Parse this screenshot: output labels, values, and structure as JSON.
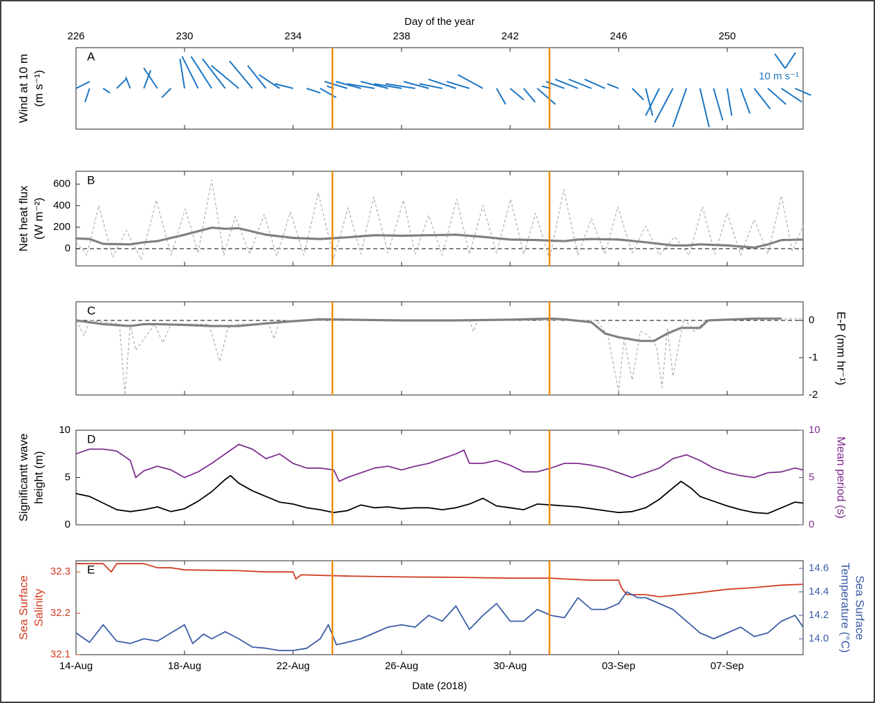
{
  "chart_data": [
    {
      "type": "wind",
      "label": "A",
      "ylabel": [
        "Wind at 10 m",
        "(m s⁻¹)"
      ],
      "xlabel": "Day of the year",
      "xlim": [
        226,
        252.8
      ],
      "xticks": [
        226,
        230,
        234,
        238,
        242,
        246,
        250
      ],
      "vlines": [
        235.45,
        243.45
      ],
      "vline_color": "#f28c00",
      "color": "#1a75c2",
      "key_label": "10 m s⁻¹",
      "x": [
        226,
        226.5,
        227,
        227.5,
        228,
        228.5,
        229,
        229.5,
        230,
        230.5,
        231,
        231.5,
        232,
        232.5,
        233,
        233.5,
        234,
        234.5,
        235,
        235.5,
        236,
        236.5,
        237,
        237.5,
        238,
        238.5,
        239,
        239.5,
        240,
        240.5,
        241,
        241.5,
        242,
        242.5,
        243,
        243.5,
        244,
        244.5,
        245,
        245.5,
        246,
        246.5,
        247,
        247.5,
        248,
        248.5,
        249,
        249.5,
        250,
        250.5,
        251,
        251.5,
        252,
        252.5
      ],
      "u": [
        6,
        -2,
        3,
        4,
        -2,
        3,
        -6,
        -4,
        -2,
        -7,
        -9,
        -10,
        -12,
        -10,
        -8,
        -9,
        -8,
        6,
        7,
        -3,
        -10,
        -11,
        -12,
        -12,
        -12,
        -13,
        -11,
        -10,
        -12,
        -10,
        -11,
        4,
        6,
        5,
        8,
        -4,
        -8,
        -10,
        -10,
        -9,
        -5,
        5,
        3,
        -6,
        -8,
        -6,
        4,
        4,
        2,
        4,
        7,
        8,
        9,
        7
      ],
      "v": [
        3,
        -6,
        -2,
        4,
        5,
        8,
        9,
        -4,
        13,
        14,
        14,
        13,
        10,
        12,
        10,
        6,
        2,
        -2,
        -4,
        1,
        3,
        3,
        2,
        3,
        2,
        2,
        3,
        2,
        4,
        3,
        6,
        -7,
        -5,
        -6,
        -7,
        1,
        3,
        4,
        4,
        4,
        2,
        -5,
        -12,
        -12,
        -15,
        -17,
        -17,
        -14,
        -12,
        -11,
        -9,
        -7,
        -6,
        -3
      ]
    },
    {
      "type": "line",
      "label": "B",
      "ylabel": [
        "Net heat flux",
        "(W m⁻²)"
      ],
      "xlim": [
        226,
        252.8
      ],
      "ylim": [
        -160,
        720
      ],
      "yticks": [
        0,
        200,
        400,
        600
      ],
      "hline": 0,
      "vlines": [
        235.45,
        243.45
      ],
      "vline_color": "#f28c00",
      "series": [
        {
          "color": "#b4b4b4",
          "dash": true,
          "width": 1.3,
          "x": [
            226,
            226.4,
            226.84,
            227.35,
            227.86,
            228.4,
            228.96,
            229.5,
            230.03,
            230.5,
            231.0,
            231.45,
            231.87,
            232.4,
            232.94,
            233.4,
            233.9,
            234.4,
            234.93,
            235.5,
            236.03,
            236.5,
            236.97,
            237.5,
            238.07,
            238.5,
            239.0,
            239.5,
            240.03,
            240.5,
            241.0,
            241.5,
            242.02,
            242.5,
            242.94,
            243.45,
            243.98,
            244.5,
            245.0,
            245.5,
            245.97,
            246.5,
            247.0,
            247.5,
            248.07,
            248.6,
            249.09,
            249.55,
            250.0,
            250.5,
            251.0,
            251.5,
            252.0,
            252.4,
            252.8
          ],
          "values": [
            60,
            -60,
            400,
            -80,
            170,
            -100,
            450,
            -60,
            370,
            -40,
            640,
            -60,
            300,
            -50,
            320,
            -70,
            340,
            -60,
            520,
            -90,
            380,
            -50,
            480,
            -40,
            450,
            -50,
            310,
            -60,
            460,
            -50,
            400,
            -40,
            460,
            -50,
            330,
            -100,
            550,
            -60,
            280,
            -50,
            390,
            -40,
            210,
            -60,
            110,
            -60,
            390,
            -50,
            330,
            -60,
            270,
            -50,
            490,
            -20,
            210
          ]
        },
        {
          "color": "#808080",
          "dash": false,
          "width": 3.2,
          "x": [
            226,
            226.5,
            227,
            228,
            228.5,
            229,
            230,
            231,
            231.5,
            232,
            233,
            234,
            235,
            236,
            237,
            238,
            239,
            240,
            241,
            242,
            243,
            244,
            244.5,
            245,
            246,
            247,
            248,
            248.5,
            249,
            250,
            251,
            251.5,
            252,
            252.8
          ],
          "values": [
            95,
            90,
            45,
            40,
            60,
            70,
            130,
            195,
            185,
            190,
            130,
            100,
            90,
            105,
            125,
            120,
            125,
            130,
            110,
            85,
            80,
            70,
            85,
            90,
            85,
            60,
            30,
            30,
            40,
            30,
            10,
            40,
            80,
            85
          ]
        }
      ]
    },
    {
      "type": "line",
      "label": "C",
      "ylabel": [
        "E-P (mm hr⁻¹)"
      ],
      "ylabel_side": "right",
      "ytick_side": "right",
      "xlim": [
        226,
        252.8
      ],
      "ylim": [
        -2,
        0.5
      ],
      "yticks": [
        0,
        -1,
        -2
      ],
      "hline": 0,
      "vlines": [
        235.45,
        243.45
      ],
      "vline_color": "#f28c00",
      "series": [
        {
          "color": "#b4b4b4",
          "dash": true,
          "width": 1.3,
          "x": [
            226,
            226.3,
            226.5,
            227.6,
            227.8,
            228.0,
            228.2,
            228.9,
            229.2,
            229.5,
            230.9,
            231.3,
            231.6,
            232.0,
            233.1,
            233.3,
            233.5,
            235,
            240.5,
            240.65,
            240.8,
            245.2,
            245.6,
            246.0,
            246.2,
            246.5,
            246.8,
            247.1,
            247.4,
            247.6,
            247.8,
            248.0,
            248.4,
            248.8,
            249.2,
            252.8
          ],
          "values": [
            0,
            -0.4,
            0,
            -0.1,
            -2.0,
            -0.1,
            -0.8,
            -0.1,
            -0.6,
            -0.1,
            -0.1,
            -1.1,
            -0.2,
            -0.1,
            -0.1,
            -0.5,
            0,
            0,
            0,
            -0.3,
            0,
            0,
            -0.4,
            -1.9,
            -0.5,
            -1.6,
            -0.3,
            -0.4,
            -0.7,
            -1.8,
            -0.2,
            -1.5,
            0.05,
            -0.3,
            0,
            0.05
          ]
        },
        {
          "color": "#808080",
          "dash": false,
          "width": 3.2,
          "x": [
            226,
            226.5,
            227,
            228,
            228.5,
            229,
            230,
            231,
            232,
            233,
            234,
            235,
            236,
            238,
            240,
            242,
            243.5,
            244,
            245,
            245.5,
            246,
            246.8,
            247.3,
            247.8,
            248.3,
            249,
            249.3,
            250,
            251,
            252
          ],
          "values": [
            0,
            -0.05,
            -0.1,
            -0.15,
            -0.1,
            -0.1,
            -0.12,
            -0.15,
            -0.15,
            -0.08,
            -0.02,
            0.03,
            0.02,
            0,
            0,
            0.02,
            0.05,
            0.03,
            -0.05,
            -0.35,
            -0.45,
            -0.55,
            -0.55,
            -0.35,
            -0.2,
            -0.2,
            0,
            0.02,
            0.05,
            0.05
          ]
        }
      ]
    },
    {
      "type": "line",
      "label": "D",
      "ylabel": [
        "Significantt wave",
        "height (m)"
      ],
      "y2label": [
        "Mean period (s)"
      ],
      "y2color": "#7e2f8e",
      "xlim": [
        226,
        252.8
      ],
      "ylim": [
        0,
        10
      ],
      "yticks": [
        0,
        5,
        10
      ],
      "y2lim": [
        0,
        10
      ],
      "y2ticks": [
        0,
        5,
        10
      ],
      "vlines": [
        235.45,
        243.45
      ],
      "vline_color": "#f28c00",
      "series": [
        {
          "color": "#000000",
          "dash": false,
          "width": 1.8,
          "x": [
            226,
            226.5,
            227,
            227.5,
            228,
            228.5,
            229,
            229.5,
            230,
            230.5,
            231,
            231.5,
            231.7,
            232,
            232.5,
            233,
            233.5,
            234,
            234.5,
            235,
            235.5,
            236,
            236.5,
            237,
            237.5,
            238,
            238.5,
            239,
            239.5,
            240,
            240.5,
            241,
            241.5,
            242,
            242.5,
            243,
            243.5,
            244,
            244.5,
            245,
            245.5,
            246,
            246.5,
            247,
            247.5,
            248,
            248.3,
            248.7,
            249,
            249.5,
            250,
            250.5,
            251,
            251.5,
            252,
            252.5,
            252.8
          ],
          "values": [
            3.3,
            3.0,
            2.3,
            1.6,
            1.4,
            1.6,
            1.9,
            1.4,
            1.7,
            2.5,
            3.5,
            4.8,
            5.2,
            4.4,
            3.6,
            3.0,
            2.4,
            2.2,
            1.8,
            1.6,
            1.3,
            1.5,
            2.1,
            1.8,
            1.9,
            1.7,
            1.8,
            1.8,
            1.6,
            1.8,
            2.2,
            2.8,
            2.0,
            1.8,
            1.6,
            2.2,
            2.1,
            2.0,
            1.9,
            1.7,
            1.5,
            1.3,
            1.4,
            1.8,
            2.7,
            3.9,
            4.6,
            3.8,
            3.0,
            2.5,
            2.0,
            1.6,
            1.3,
            1.2,
            1.8,
            2.4,
            2.3
          ]
        },
        {
          "color": "#7e2f8e",
          "dash": false,
          "width": 1.8,
          "axis": "y2",
          "x": [
            226,
            226.5,
            227,
            227.5,
            228,
            228.2,
            228.5,
            229,
            229.5,
            230,
            230.5,
            231,
            231.5,
            232,
            232.5,
            233,
            233.5,
            234,
            234.5,
            235,
            235.5,
            235.7,
            236,
            236.5,
            237,
            237.5,
            238,
            238.5,
            239,
            239.5,
            240,
            240.3,
            240.5,
            241,
            241.5,
            242,
            242.5,
            243,
            243.5,
            244,
            244.5,
            245,
            245.5,
            246,
            246.5,
            247,
            247.5,
            248,
            248.5,
            249,
            249.5,
            250,
            250.5,
            251,
            251.5,
            252,
            252.5,
            252.8
          ],
          "values": [
            7.5,
            8.0,
            8.0,
            7.8,
            6.8,
            5.0,
            5.7,
            6.2,
            5.8,
            5.0,
            5.6,
            6.5,
            7.5,
            8.5,
            8.0,
            7.0,
            7.5,
            6.5,
            6.0,
            6.0,
            5.8,
            4.6,
            5.0,
            5.5,
            6.0,
            6.2,
            5.8,
            6.2,
            6.5,
            7.0,
            7.5,
            7.9,
            6.5,
            6.5,
            6.8,
            6.3,
            5.6,
            5.6,
            6.0,
            6.5,
            6.5,
            6.3,
            6.0,
            5.5,
            5.0,
            5.5,
            6.0,
            7.0,
            7.4,
            6.8,
            6.0,
            5.5,
            5.2,
            5.0,
            5.5,
            5.6,
            6.0,
            5.8
          ]
        }
      ]
    },
    {
      "type": "line",
      "label": "E",
      "ylabel": [
        "Sea Surface",
        "Salinity"
      ],
      "ycolor": "#d13b22",
      "y2label": [
        "Sea Surface",
        "Temperature (°C)"
      ],
      "y2color": "#3b5ba5",
      "xlabel": "Date (2018)",
      "xlim": [
        226,
        252.8
      ],
      "xticks": [
        {
          "value": 226,
          "label": "14-Aug"
        },
        {
          "value": 230,
          "label": "18-Aug"
        },
        {
          "value": 234,
          "label": "22-Aug"
        },
        {
          "value": 238,
          "label": "26-Aug"
        },
        {
          "value": 242,
          "label": "30-Aug"
        },
        {
          "value": 246,
          "label": "03-Sep"
        },
        {
          "value": 250,
          "label": "07-Sep"
        }
      ],
      "ylim": [
        32.1,
        32.327
      ],
      "yticks": [
        32.1,
        32.2,
        32.3
      ],
      "y2lim": [
        13.865,
        14.665
      ],
      "y2ticks": [
        {
          "value": 14,
          "label": "14.0"
        },
        14.2,
        14.4,
        14.6
      ],
      "vlines": [
        235.45,
        243.45
      ],
      "vline_color": "#f28c00",
      "series": [
        {
          "color": "#d13b22",
          "dash": false,
          "width": 1.8,
          "x": [
            226,
            227,
            227.3,
            227.5,
            228.5,
            229,
            229.5,
            230,
            232,
            233,
            234,
            234.1,
            234.3,
            236,
            238,
            240,
            242,
            243.5,
            244,
            245,
            246,
            246.1,
            246.3,
            247,
            247.5,
            248,
            249,
            250,
            251,
            252,
            252.8
          ],
          "values": [
            32.32,
            32.32,
            32.3,
            32.32,
            32.32,
            32.31,
            32.31,
            32.305,
            32.303,
            32.3,
            32.3,
            32.283,
            32.293,
            32.29,
            32.288,
            32.287,
            32.285,
            32.285,
            32.283,
            32.28,
            32.28,
            32.262,
            32.245,
            32.245,
            32.24,
            32.243,
            32.25,
            32.258,
            32.262,
            32.268,
            32.27
          ]
        },
        {
          "color": "#3b5ba5",
          "dash": false,
          "width": 1.8,
          "axis": "y2",
          "x": [
            226,
            226.5,
            227,
            227.5,
            228,
            228.5,
            229,
            229.5,
            230,
            230.3,
            230.7,
            231,
            231.5,
            232,
            232.5,
            233,
            233.5,
            234,
            234.5,
            235,
            235.3,
            235.6,
            236,
            236.5,
            237,
            237.5,
            238,
            238.5,
            239,
            239.5,
            240,
            240.5,
            241,
            241.5,
            242,
            242.5,
            243,
            243.5,
            244,
            244.5,
            245,
            245.5,
            246,
            246.3,
            246.7,
            247,
            247.5,
            248,
            248.5,
            249,
            249.5,
            250,
            250.5,
            251,
            251.5,
            252,
            252.5,
            252.8
          ],
          "values": [
            14.05,
            13.97,
            14.12,
            13.98,
            13.96,
            14.0,
            13.98,
            14.05,
            14.12,
            13.96,
            14.04,
            14.0,
            14.06,
            14.0,
            13.93,
            13.92,
            13.9,
            13.9,
            13.92,
            14.0,
            14.12,
            13.95,
            13.97,
            14.0,
            14.05,
            14.1,
            14.12,
            14.1,
            14.2,
            14.15,
            14.28,
            14.08,
            14.2,
            14.3,
            14.15,
            14.15,
            14.25,
            14.2,
            14.18,
            14.35,
            14.25,
            14.25,
            14.3,
            14.4,
            14.35,
            14.35,
            14.3,
            14.25,
            14.15,
            14.05,
            14.0,
            14.05,
            14.1,
            14.02,
            14.05,
            14.15,
            14.2,
            14.1
          ]
        }
      ]
    }
  ]
}
